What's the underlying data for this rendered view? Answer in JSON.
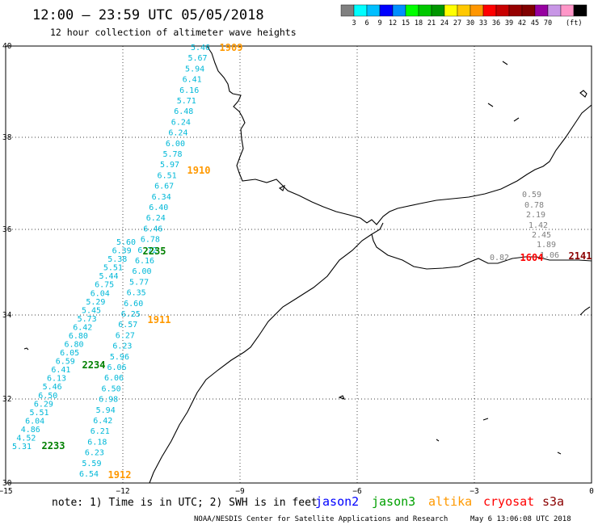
{
  "header": {
    "title": "12:00 – 23:59 UTC 05/05/2018",
    "subtitle": "12 hour collection of altimeter wave heights"
  },
  "colorbar": {
    "colors": [
      "#808080",
      "#00ffff",
      "#00bfff",
      "#0000ff",
      "#008fff",
      "#00ff00",
      "#00c800",
      "#009600",
      "#ffff00",
      "#ffc800",
      "#ff9600",
      "#ff0000",
      "#c80000",
      "#960000",
      "#800000",
      "#9600a0",
      "#c896e6",
      "#ff96c8",
      "#000000"
    ],
    "labels": [
      "3",
      "6",
      "9",
      "12",
      "15",
      "18",
      "21",
      "24",
      "27",
      "30",
      "33",
      "36",
      "39",
      "42",
      "45",
      "70"
    ],
    "unit": "(ft)"
  },
  "axes": {
    "lon_ticks": [
      "−15",
      "−12",
      "−9",
      "−6",
      "−3",
      "0"
    ],
    "lat_ticks": [
      "40",
      "38",
      "36",
      "34",
      "32",
      "30"
    ]
  },
  "passes": [
    {
      "id": "1909",
      "color": "#ff9900"
    },
    {
      "id": "1910",
      "color": "#ff9900"
    },
    {
      "id": "1911",
      "color": "#ff9900"
    },
    {
      "id": "1912",
      "color": "#ff9900"
    },
    {
      "id": "2235",
      "color": "#008000"
    },
    {
      "id": "2234",
      "color": "#008000"
    },
    {
      "id": "2233",
      "color": "#008000"
    },
    {
      "id": "1604",
      "color": "#ff0000"
    },
    {
      "id": "2141",
      "color": "#8b0000"
    }
  ],
  "tracks": {
    "track_a": [
      "5.46",
      "5.67",
      "5.94",
      "6.41",
      "6.16",
      "5.71",
      "6.48",
      "6.24",
      "6.24",
      "6.00",
      "5.78",
      "5.97",
      "6.51",
      "6.67",
      "6.34",
      "6.40",
      "6.24",
      "6.46",
      "6.78",
      "6.72",
      "6.16",
      "6.00",
      "5.77",
      "6.35",
      "6.60",
      "6.25",
      "6.57",
      "6.27",
      "6.23",
      "5.96",
      "6.06",
      "6.06",
      "6.50",
      "6.98",
      "5.94",
      "6.42",
      "6.21",
      "6.18",
      "6.23",
      "5.59",
      "6.54"
    ],
    "track_b": [
      "5.60",
      "6.39",
      "5.38",
      "5.51",
      "5.44",
      "6.75",
      "6.04",
      "5.29",
      "5.45",
      "5.73",
      "6.42",
      "6.80",
      "6.80",
      "6.05",
      "6.59",
      "6.41",
      "6.13",
      "5.46",
      "6.50",
      "6.29",
      "5.51",
      "6.04",
      "4.86",
      "4.52",
      "5.31"
    ],
    "track_c": [
      "0.59",
      "0.78",
      "2.19",
      "1.42",
      "2.45",
      "1.89",
      "1.06",
      "0.82"
    ]
  },
  "footer": {
    "note": "note: 1) Time is in UTC; 2) SWH is in feet",
    "satellites": [
      {
        "name": "jason2",
        "color": "#0000ff"
      },
      {
        "name": "jason3",
        "color": "#00a000"
      },
      {
        "name": "altika",
        "color": "#ff9900"
      },
      {
        "name": "cryosat",
        "color": "#ff0000"
      },
      {
        "name": "s3a",
        "color": "#8b0000"
      }
    ],
    "credit": "NOAA/NESDIS Center for Satellite Applications and Research",
    "timestamp": "May  6 13:06:08 UTC 2018"
  }
}
